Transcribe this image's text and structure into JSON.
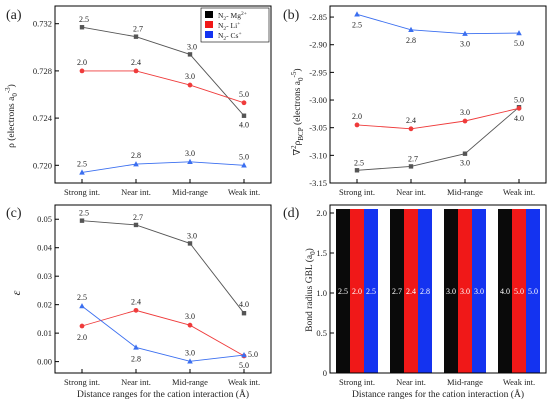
{
  "chart_data": [
    {
      "panel": "a",
      "type": "line",
      "categories": [
        "Strong int.",
        "Near int.",
        "Mid-range",
        "Weak int."
      ],
      "ylabel": "ρ (electrons a₀⁻³)",
      "ylim": [
        0.7185,
        0.7335
      ],
      "yticks": [
        0.72,
        0.724,
        0.728,
        0.732
      ],
      "ytick_labels": [
        "0.720",
        "0.724",
        "0.728",
        "0.732"
      ],
      "legend": {
        "position": "top-right"
      },
      "series": [
        {
          "name": "N₂-Mg²⁺",
          "color": "#555555",
          "marker": "square",
          "values": [
            0.7317,
            0.7309,
            0.7294,
            0.7242
          ],
          "labels": [
            "2.5",
            "2.7",
            "3.0",
            "4.0"
          ]
        },
        {
          "name": "N₂-Li⁺",
          "color": "#ef3b3b",
          "marker": "circle",
          "values": [
            0.728,
            0.728,
            0.7268,
            0.7253
          ],
          "labels": [
            "2.0",
            "2.4",
            "3.0",
            "5.0"
          ]
        },
        {
          "name": "N₂-Cs⁺",
          "color": "#3b6ff0",
          "marker": "triangle",
          "values": [
            0.7194,
            0.7201,
            0.7203,
            0.72
          ],
          "labels": [
            "2.5",
            "2.8",
            "3.0",
            "5.0"
          ]
        }
      ]
    },
    {
      "panel": "b",
      "type": "line",
      "categories": [
        "Strong int.",
        "Near int.",
        "Mid-range",
        "Weak int."
      ],
      "ylabel": "∇²ρBCP (electrons a₀⁻⁵)",
      "ylim": [
        -3.15,
        -2.83
      ],
      "yticks": [
        -2.85,
        -2.9,
        -2.95,
        -3.0,
        -3.05,
        -3.1,
        -3.15
      ],
      "ytick_labels": [
        "-2.85",
        "-2.90",
        "-2.95",
        "-3.00",
        "-3.05",
        "-3.10",
        "-3.15"
      ],
      "series": [
        {
          "name": "N₂-Mg²⁺",
          "color": "#555555",
          "marker": "square",
          "values": [
            -3.127,
            -3.12,
            -3.097,
            -3.013
          ],
          "labels": [
            "2.5",
            "2.7",
            "3.0",
            "4.0"
          ]
        },
        {
          "name": "N₂-Li⁺",
          "color": "#ef3b3b",
          "marker": "circle",
          "values": [
            -3.045,
            -3.052,
            -3.038,
            -3.015
          ],
          "labels": [
            "2.0",
            "2.4",
            "3.0",
            "5.0"
          ]
        },
        {
          "name": "N₂-Cs⁺",
          "color": "#3b6ff0",
          "marker": "triangle",
          "values": [
            -2.845,
            -2.873,
            -2.88,
            -2.879
          ],
          "labels": [
            "2.5",
            "2.8",
            "3.0",
            "5.0"
          ]
        }
      ]
    },
    {
      "panel": "c",
      "type": "line",
      "categories": [
        "Strong int.",
        "Near int.",
        "Mid-range",
        "Weak int."
      ],
      "ylabel": "ε",
      "xlabel": "Distance ranges for the cation interaction (Å)",
      "ylim": [
        -0.004,
        0.055
      ],
      "yticks": [
        0.0,
        0.01,
        0.02,
        0.03,
        0.04,
        0.05
      ],
      "ytick_labels": [
        "0.00",
        "0.01",
        "0.02",
        "0.03",
        "0.04",
        "0.05"
      ],
      "series": [
        {
          "name": "N₂-Mg²⁺",
          "color": "#555555",
          "marker": "square",
          "values": [
            0.0495,
            0.048,
            0.0415,
            0.017
          ],
          "labels": [
            "2.5",
            "2.7",
            "3.0",
            "4.0"
          ]
        },
        {
          "name": "N₂-Li⁺",
          "color": "#ef3b3b",
          "marker": "circle",
          "values": [
            0.0125,
            0.018,
            0.0128,
            0.002
          ],
          "labels": [
            "2.0",
            "2.4",
            "3.0",
            "5.0"
          ]
        },
        {
          "name": "N₂-Cs⁺",
          "color": "#3b6ff0",
          "marker": "triangle",
          "values": [
            0.0195,
            0.005,
            0.0001,
            0.0023
          ],
          "labels": [
            "2.5",
            "2.8",
            "3.0",
            "5.0"
          ]
        }
      ]
    },
    {
      "panel": "d",
      "type": "bar",
      "categories": [
        "Strong int.",
        "Near int.",
        "Mid-range",
        "Weak int."
      ],
      "ylabel": "Bond radius GBL (a₀)",
      "xlabel": "Distance ranges for the cation interaction (Å)",
      "ylim": [
        0,
        2.1
      ],
      "yticks": [
        0,
        0.5,
        1.0,
        1.5,
        2.0
      ],
      "ytick_labels": [
        "0",
        "0.5",
        "1.0",
        "1.5",
        "2.0"
      ],
      "series": [
        {
          "name": "N₂-Mg²⁺",
          "color": "#0a0a0a",
          "values": [
            2.05,
            2.05,
            2.05,
            2.05
          ],
          "labels": [
            "2.5",
            "2.7",
            "3.0",
            "4.0"
          ]
        },
        {
          "name": "N₂-Li⁺",
          "color": "#f01818",
          "values": [
            2.05,
            2.05,
            2.05,
            2.05
          ],
          "labels": [
            "2.0",
            "2.4",
            "3.0",
            "5.0"
          ]
        },
        {
          "name": "N₂-Cs⁺",
          "color": "#1433f0",
          "values": [
            2.05,
            2.05,
            2.05,
            2.05
          ],
          "labels": [
            "2.5",
            "2.8",
            "3.0",
            "5.0"
          ]
        }
      ]
    }
  ]
}
